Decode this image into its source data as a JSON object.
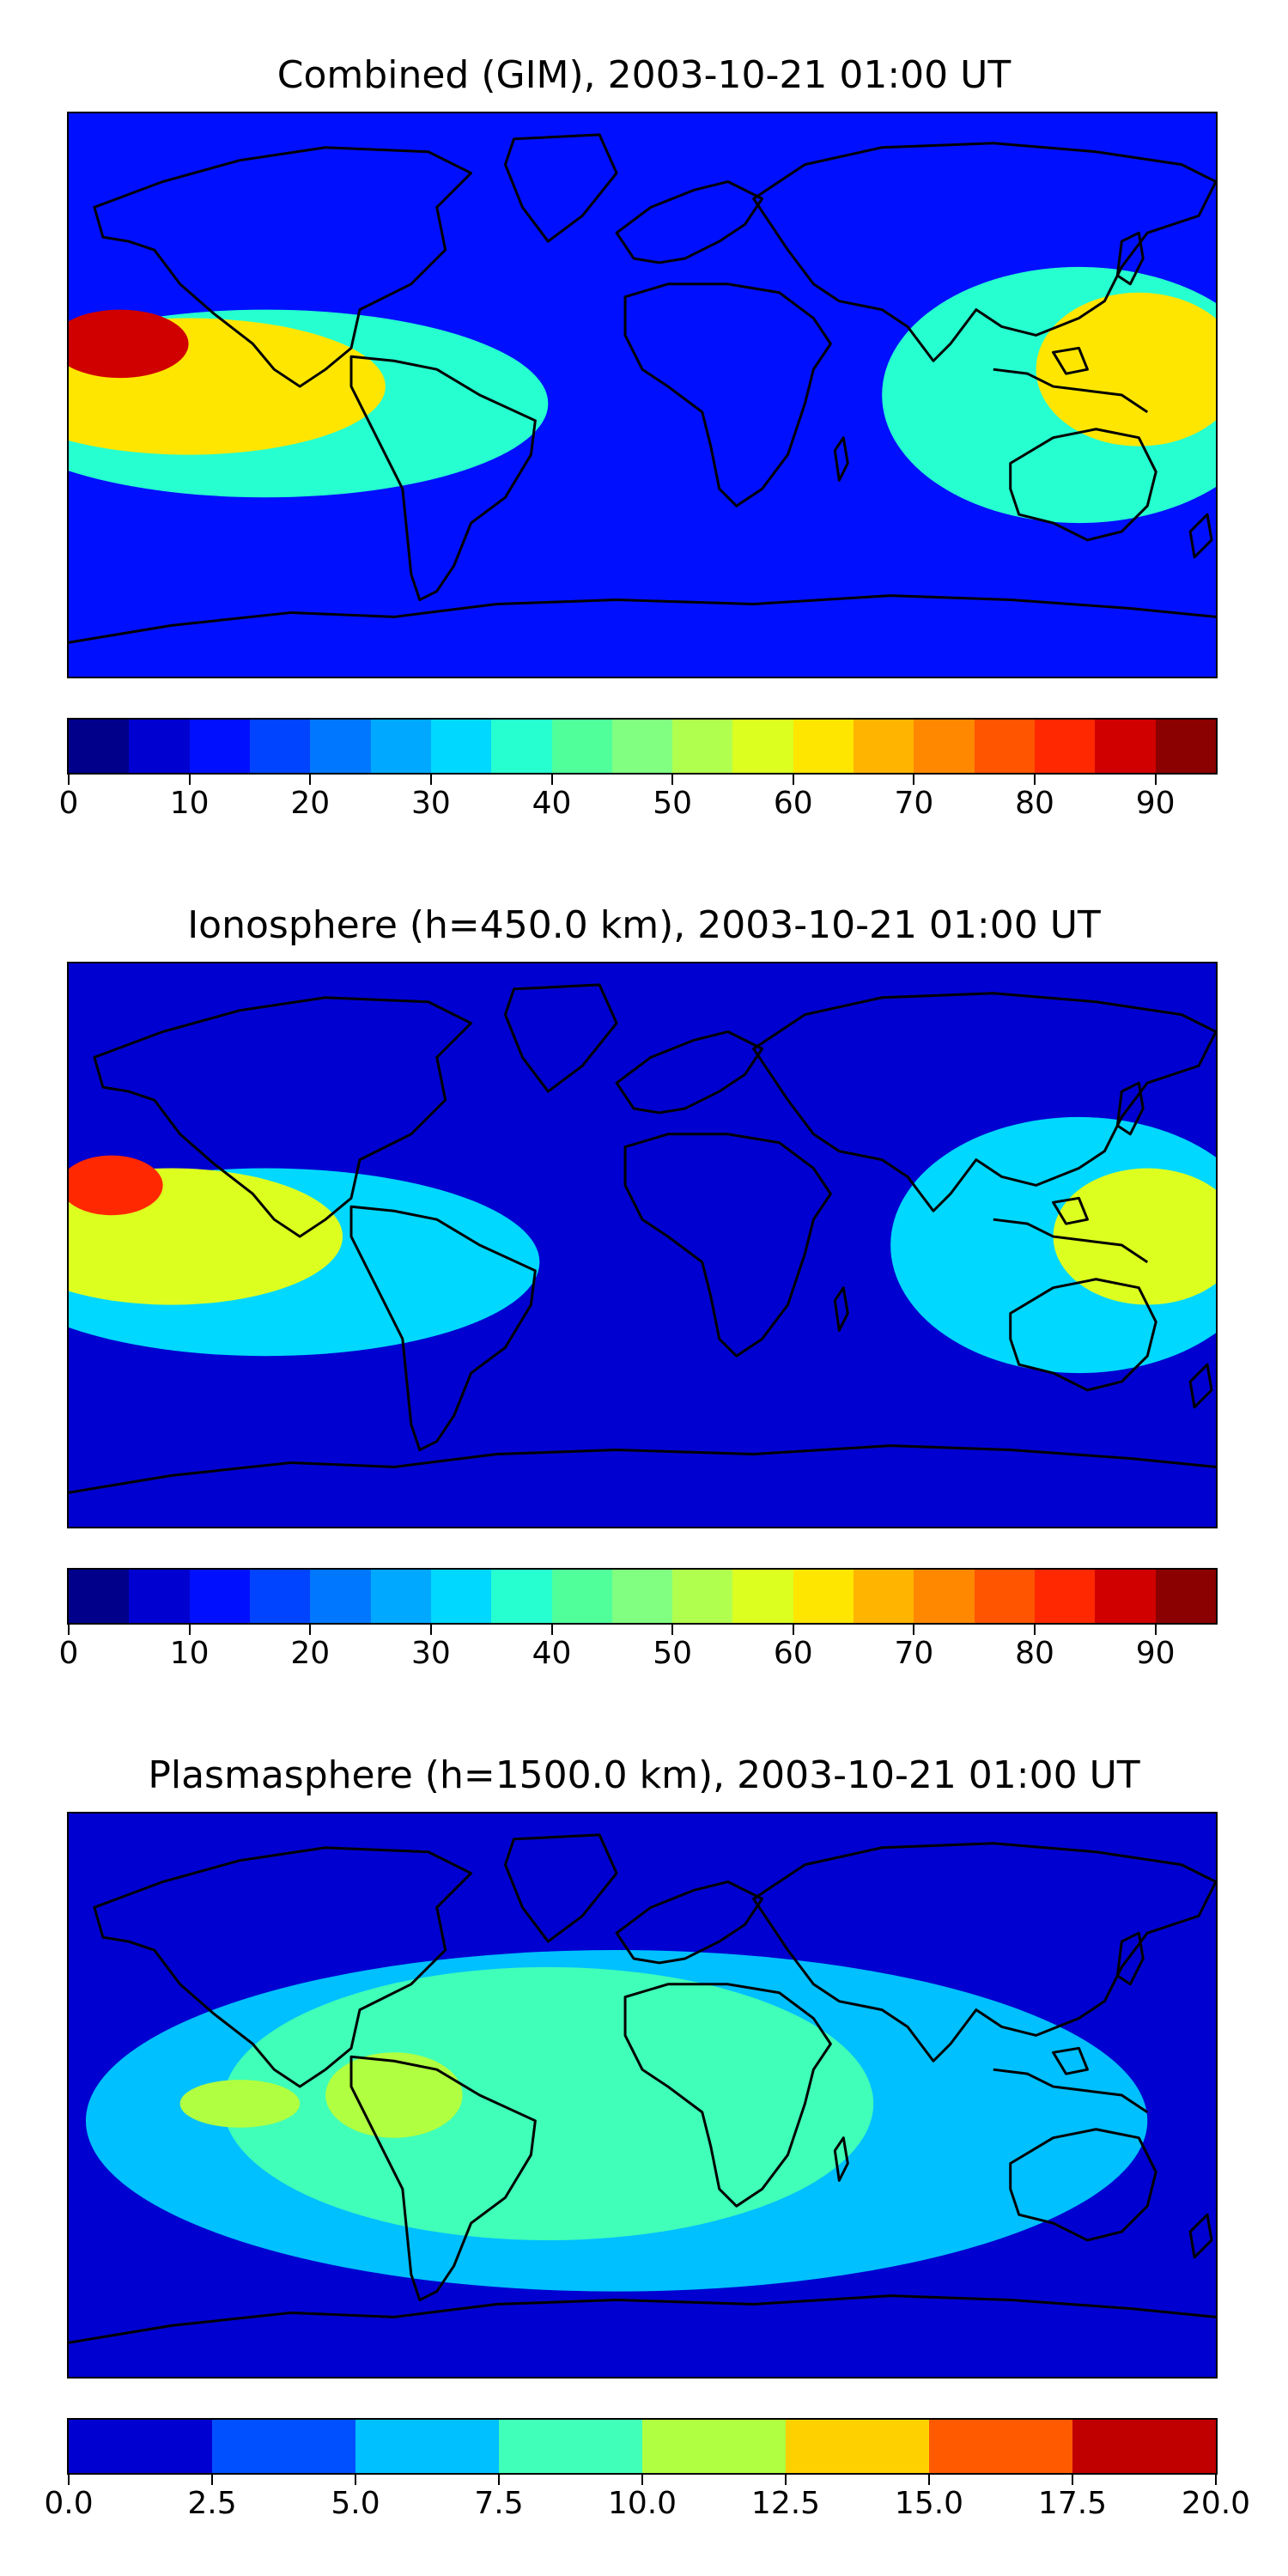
{
  "panels": [
    {
      "title": "Combined (GIM), 2003-10-21 01:00 UT",
      "colorbar": {
        "ticks": [
          "0",
          "10",
          "20",
          "30",
          "40",
          "50",
          "60",
          "70",
          "80",
          "90"
        ],
        "tick_values": [
          0,
          10,
          20,
          30,
          40,
          50,
          60,
          70,
          80,
          90
        ],
        "range": [
          0,
          95
        ],
        "colors": [
          "#00008b",
          "#0000d0",
          "#0010ff",
          "#0044ff",
          "#0077ff",
          "#00a8ff",
          "#00d8ff",
          "#26ffd0",
          "#50ff9a",
          "#80ff80",
          "#b0ff4e",
          "#dcff20",
          "#ffe600",
          "#ffb400",
          "#ff8800",
          "#ff5400",
          "#ff2800",
          "#d00000",
          "#8b0000"
        ]
      },
      "field_colors": {
        "low": "#0010ff",
        "mid": "#26ffd0",
        "high": "#ffe600",
        "peak": "#d00000"
      }
    },
    {
      "title": "Ionosphere  (h=450.0 km), 2003-10-21 01:00 UT",
      "colorbar": {
        "ticks": [
          "0",
          "10",
          "20",
          "30",
          "40",
          "50",
          "60",
          "70",
          "80",
          "90"
        ],
        "tick_values": [
          0,
          10,
          20,
          30,
          40,
          50,
          60,
          70,
          80,
          90
        ],
        "range": [
          0,
          95
        ],
        "colors": [
          "#00008b",
          "#0000d0",
          "#0010ff",
          "#0044ff",
          "#0077ff",
          "#00a8ff",
          "#00d8ff",
          "#26ffd0",
          "#50ff9a",
          "#80ff80",
          "#b0ff4e",
          "#dcff20",
          "#ffe600",
          "#ffb400",
          "#ff8800",
          "#ff5400",
          "#ff2800",
          "#d00000",
          "#8b0000"
        ]
      },
      "field_colors": {
        "low": "#0000d0",
        "mid": "#00d8ff",
        "high": "#dcff20",
        "peak": "#ff2800"
      }
    },
    {
      "title": "Plasmasphere (h=1500.0 km), 2003-10-21 01:00 UT",
      "colorbar": {
        "ticks": [
          "0.0",
          "2.5",
          "5.0",
          "7.5",
          "10.0",
          "12.5",
          "15.0",
          "17.5",
          "20.0"
        ],
        "tick_values": [
          0,
          2.5,
          5,
          7.5,
          10,
          12.5,
          15,
          17.5,
          20
        ],
        "range": [
          0,
          20
        ],
        "colors": [
          "#0000d0",
          "#0050ff",
          "#00c0ff",
          "#40ffb8",
          "#b0ff40",
          "#ffd000",
          "#ff5a00",
          "#c00000"
        ]
      },
      "field_colors": {
        "low": "#0000d0",
        "mid": "#00c0ff",
        "high": "#40ffb8",
        "peak": "#b0ff40"
      }
    }
  ],
  "coastline_color": "#000000"
}
